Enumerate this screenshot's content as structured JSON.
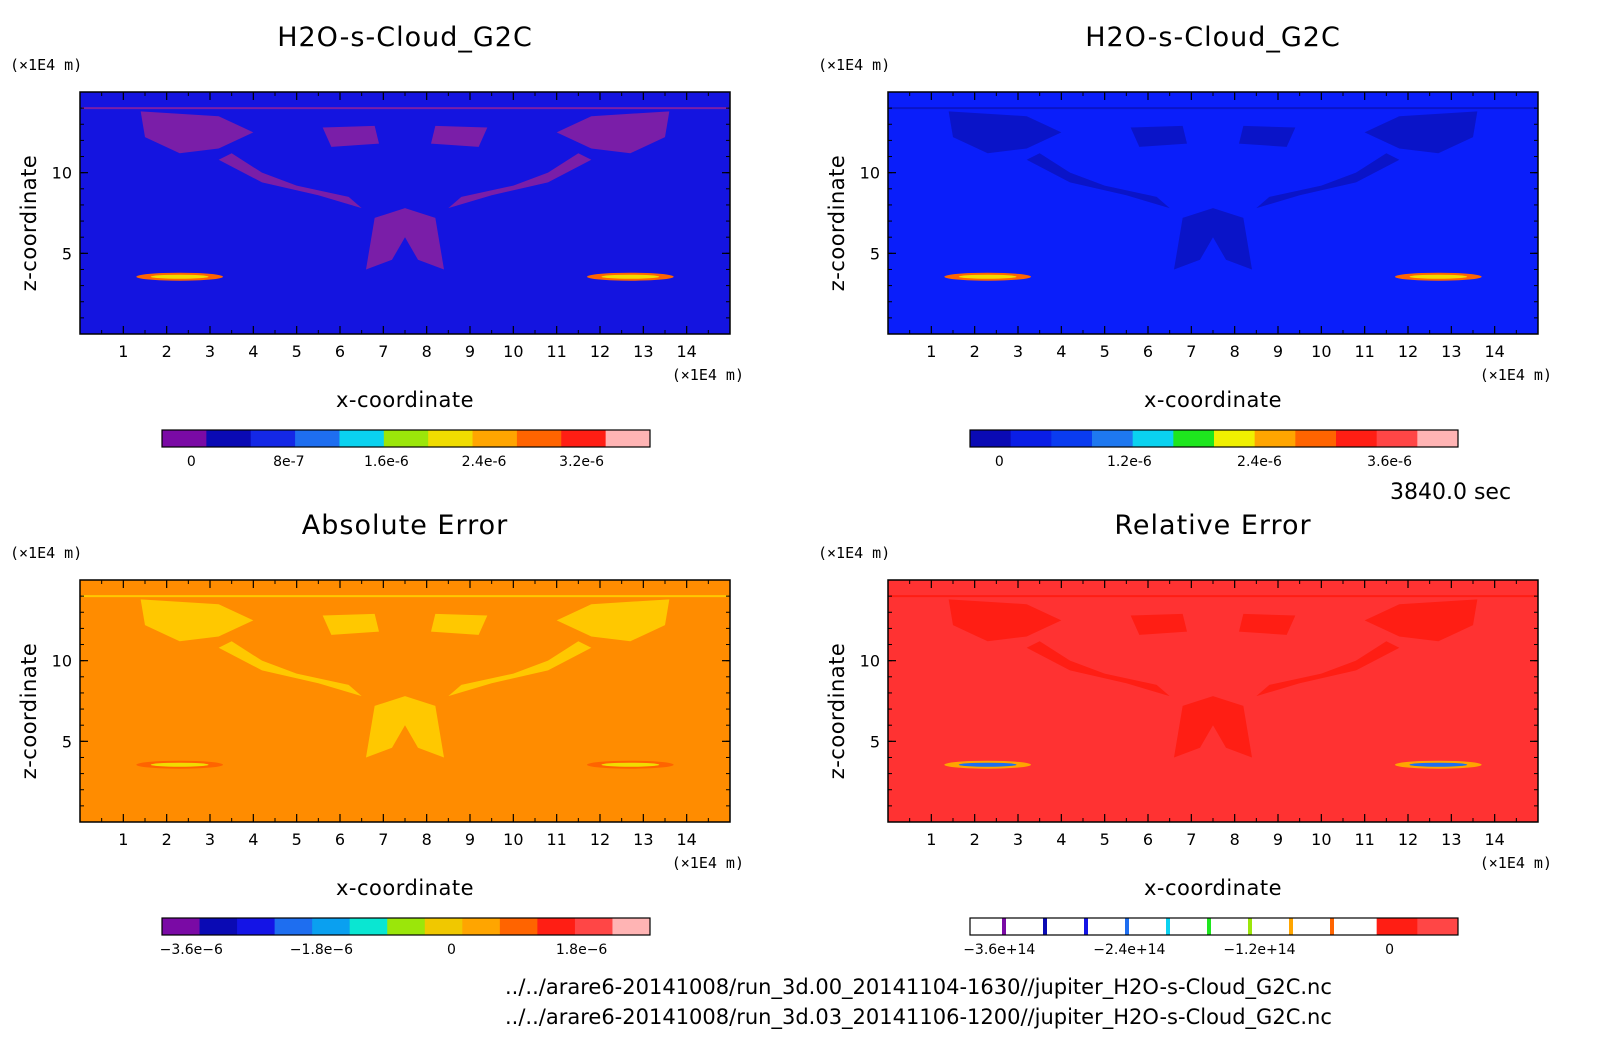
{
  "time_label": "3840.0 sec",
  "files": [
    "../../arare6-20141008/run_3d.00_20141104-1630//jupiter_H2O-s-Cloud_G2C.nc",
    "../../arare6-20141008/run_3d.03_20141106-1200//jupiter_H2O-s-Cloud_G2C.nc"
  ],
  "chart_data": [
    {
      "type": "heatmap",
      "title": "H2O-s-Cloud_G2C",
      "xlabel": "x-coordinate",
      "ylabel": "z-coordinate",
      "x_unit": "(×1E4 m)",
      "y_unit": "(×1E4 m)",
      "xlim": [
        0,
        15
      ],
      "ylim": [
        0,
        15
      ],
      "xticks": [
        "1",
        "2",
        "3",
        "4",
        "5",
        "6",
        "7",
        "8",
        "9",
        "10",
        "11",
        "12",
        "13",
        "14"
      ],
      "yticks": [
        "5",
        "10"
      ],
      "background_color": "#1414e0",
      "cloud_color": "#7a1ea8",
      "colorbar": {
        "colors": [
          "#7a0aa5",
          "#0a0ab4",
          "#1428e6",
          "#1e6ef0",
          "#0ad2f0",
          "#9be60a",
          "#f0dc00",
          "#ffa500",
          "#ff6400",
          "#ff1e14",
          "#ffb4b4"
        ],
        "labels": [
          "0",
          "8e-7",
          "1.6e-6",
          "2.4e-6",
          "3.2e-6"
        ]
      }
    },
    {
      "type": "heatmap",
      "title": "H2O-s-Cloud_G2C",
      "xlabel": "x-coordinate",
      "ylabel": "z-coordinate",
      "x_unit": "(×1E4 m)",
      "y_unit": "(×1E4 m)",
      "xlim": [
        0,
        15
      ],
      "ylim": [
        0,
        15
      ],
      "xticks": [
        "1",
        "2",
        "3",
        "4",
        "5",
        "6",
        "7",
        "8",
        "9",
        "10",
        "11",
        "12",
        "13",
        "14"
      ],
      "yticks": [
        "5",
        "10"
      ],
      "background_color": "#0a1efa",
      "cloud_color": "#0a14c8",
      "colorbar": {
        "colors": [
          "#0a0ab4",
          "#0a1ee6",
          "#0a3cf0",
          "#1e78f0",
          "#0ad2f0",
          "#1ee61e",
          "#f0f000",
          "#ffa500",
          "#ff6400",
          "#ff1e14",
          "#ff4646",
          "#ffb4b4"
        ],
        "labels": [
          "0",
          "1.2e-6",
          "2.4e-6",
          "3.6e-6"
        ]
      }
    },
    {
      "type": "heatmap",
      "title": "Absolute Error",
      "xlabel": "x-coordinate",
      "ylabel": "z-coordinate",
      "x_unit": "(×1E4 m)",
      "y_unit": "(×1E4 m)",
      "xlim": [
        0,
        15
      ],
      "ylim": [
        0,
        15
      ],
      "xticks": [
        "1",
        "2",
        "3",
        "4",
        "5",
        "6",
        "7",
        "8",
        "9",
        "10",
        "11",
        "12",
        "13",
        "14"
      ],
      "yticks": [
        "5",
        "10"
      ],
      "background_color": "#ff8c00",
      "cloud_color": "#ffc800",
      "colorbar": {
        "colors": [
          "#7a0aa5",
          "#0a0ab4",
          "#1414e6",
          "#1e6ef0",
          "#0aa0f0",
          "#0ae6d2",
          "#9be60a",
          "#f0c800",
          "#ffa500",
          "#ff6400",
          "#ff1e14",
          "#ff4646",
          "#ffb4b4"
        ],
        "labels": [
          "−3.6e−6",
          "−1.8e−6",
          "0",
          "1.8e−6"
        ]
      }
    },
    {
      "type": "heatmap",
      "title": "Relative Error",
      "xlabel": "x-coordinate",
      "ylabel": "z-coordinate",
      "x_unit": "(×1E4 m)",
      "y_unit": "(×1E4 m)",
      "xlim": [
        0,
        15
      ],
      "ylim": [
        0,
        15
      ],
      "xticks": [
        "1",
        "2",
        "3",
        "4",
        "5",
        "6",
        "7",
        "8",
        "9",
        "10",
        "11",
        "12",
        "13",
        "14"
      ],
      "yticks": [
        "5",
        "10"
      ],
      "background_color": "#ff3232",
      "cloud_color": "#ff1e14",
      "colorbar": {
        "colors": [
          "#ffffff",
          "#ffffff",
          "#ffffff",
          "#ffffff",
          "#ffffff",
          "#ffffff",
          "#ffffff",
          "#ffffff",
          "#ffffff",
          "#ffffff",
          "#ff1e14",
          "#ff4646"
        ],
        "markers": [
          "#7a0aa5",
          "#0a0ab4",
          "#1414e6",
          "#1e6ef0",
          "#0ad2f0",
          "#1ee61e",
          "#9be60a",
          "#ffa500",
          "#ff6400"
        ],
        "labels": [
          "−3.6e+14",
          "−2.4e+14",
          "−1.2e+14",
          "0"
        ]
      }
    }
  ]
}
